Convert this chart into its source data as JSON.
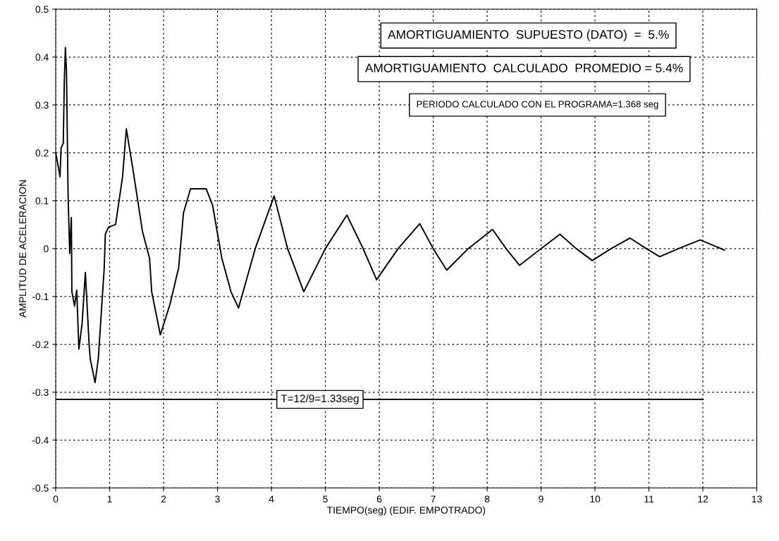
{
  "chart_data": {
    "type": "line",
    "xlabel": "TIEMPO(seg) (EDIF. EMPOTRADO)",
    "ylabel": "AMPLITUD DE ACELERACION",
    "xlim": [
      0,
      13
    ],
    "xticks": [
      0,
      1,
      2,
      3,
      4,
      5,
      6,
      7,
      8,
      9,
      10,
      11,
      12,
      13
    ],
    "ylim": [
      -0.5,
      0.5
    ],
    "yticks": [
      -0.5,
      -0.4,
      -0.3,
      -0.2,
      -0.1,
      0,
      0.1,
      0.2,
      0.3,
      0.4,
      0.5
    ],
    "grid": true,
    "line_style": "solid",
    "marker": "none",
    "series": [
      {
        "color": "#000000",
        "x": [
          0,
          0.05,
          0.08,
          0.1,
          0.14,
          0.16,
          0.18,
          0.2,
          0.23,
          0.26,
          0.29,
          0.3,
          0.35,
          0.39,
          0.43,
          0.49,
          0.55,
          0.62,
          0.64,
          0.73,
          0.79,
          0.9,
          0.92,
          0.98,
          1.11,
          1.24,
          1.31,
          1.44,
          1.61,
          1.74,
          1.78,
          1.94,
          2.12,
          2.28,
          2.37,
          2.5,
          2.79,
          2.91,
          3.08,
          3.25,
          3.39,
          3.7,
          4.05,
          4.3,
          4.6,
          5.0,
          5.4,
          5.7,
          5.95,
          6.35,
          6.75,
          7.0,
          7.25,
          7.65,
          8.1,
          8.35,
          8.6,
          9.0,
          9.35,
          9.65,
          9.95,
          10.3,
          10.65,
          10.95,
          11.2,
          11.55,
          11.95,
          12.4
        ],
        "values": [
          0.2,
          0.17,
          0.15,
          0.21,
          0.22,
          0.35,
          0.42,
          0.37,
          0.11,
          -0.01,
          0.065,
          -0.09,
          -0.12,
          -0.087,
          -0.21,
          -0.156,
          -0.05,
          -0.2,
          -0.23,
          -0.28,
          -0.23,
          -0.04,
          0.03,
          0.045,
          0.05,
          0.15,
          0.25,
          0.16,
          0.035,
          -0.02,
          -0.09,
          -0.18,
          -0.116,
          -0.04,
          0.075,
          0.125,
          0.125,
          0.09,
          -0.02,
          -0.09,
          -0.124,
          0,
          0.11,
          0,
          -0.09,
          0,
          0.07,
          0,
          -0.065,
          0,
          0.052,
          0,
          -0.045,
          0,
          0.04,
          0,
          -0.035,
          0,
          0.03,
          0,
          -0.025,
          0,
          0.022,
          0,
          -0.017,
          0,
          0.018,
          -0.003
        ]
      },
      {
        "color": "#000000",
        "x": [
          0,
          12
        ],
        "values": [
          -0.315,
          -0.315
        ]
      }
    ],
    "annotations": [
      "AMORTIGUAMIENTO  SUPUESTO (DATO)  =  5.%",
      "AMORTIGUAMIENTO  CALCULADO  PROMEDIO = 5.4%",
      "PERIODO CALCULADO CON EL PROGRAMA=1.368 seg",
      {
        "text": "T=12/9=1.33seg",
        "x": 4.9,
        "y": -0.315
      }
    ]
  }
}
